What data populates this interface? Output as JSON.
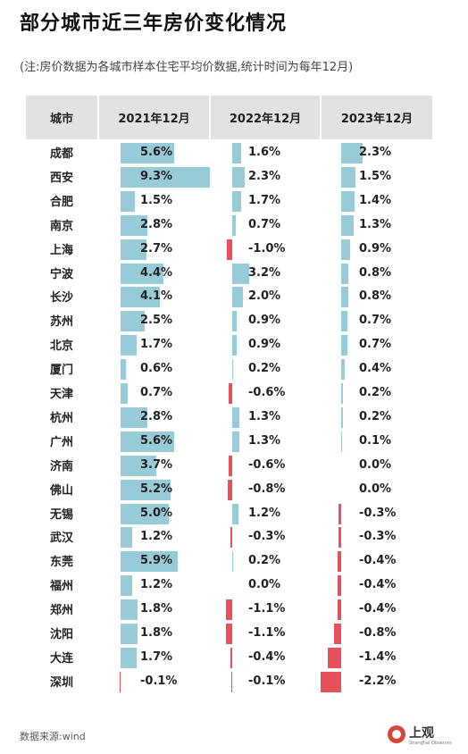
{
  "title": "部分城市近三年房价变化情况",
  "note": "(注:房价数据为各城市样本住宅平均价数据,统计时间为每年12月)",
  "source": "数据来源:wind",
  "logo": {
    "text": "上观",
    "sub": "Shanghai Observer"
  },
  "colors": {
    "positive": "#98cbd8",
    "negative": "#e8505b",
    "header_bg": "#e2e2e2"
  },
  "chart_data": {
    "type": "table",
    "row_header": "城市",
    "columns": [
      "2021年12月",
      "2022年12月",
      "2023年12月"
    ],
    "rows": [
      {
        "city": "成都",
        "values": [
          5.6,
          1.6,
          2.3
        ]
      },
      {
        "city": "西安",
        "values": [
          9.3,
          2.3,
          1.5
        ]
      },
      {
        "city": "合肥",
        "values": [
          1.5,
          1.7,
          1.4
        ]
      },
      {
        "city": "南京",
        "values": [
          2.8,
          0.7,
          1.3
        ]
      },
      {
        "city": "上海",
        "values": [
          2.7,
          -1.0,
          0.9
        ]
      },
      {
        "city": "宁波",
        "values": [
          4.4,
          3.2,
          0.8
        ]
      },
      {
        "city": "长沙",
        "values": [
          4.1,
          2.0,
          0.8
        ]
      },
      {
        "city": "苏州",
        "values": [
          2.5,
          0.9,
          0.7
        ]
      },
      {
        "city": "北京",
        "values": [
          1.7,
          0.9,
          0.7
        ]
      },
      {
        "city": "厦门",
        "values": [
          0.6,
          0.2,
          0.4
        ]
      },
      {
        "city": "天津",
        "values": [
          0.7,
          -0.6,
          0.2
        ]
      },
      {
        "city": "杭州",
        "values": [
          2.8,
          1.3,
          0.2
        ]
      },
      {
        "city": "广州",
        "values": [
          5.6,
          1.3,
          0.1
        ]
      },
      {
        "city": "济南",
        "values": [
          3.7,
          -0.6,
          0.0
        ]
      },
      {
        "city": "佛山",
        "values": [
          5.2,
          -0.8,
          0.0
        ]
      },
      {
        "city": "无锡",
        "values": [
          5.0,
          1.2,
          -0.3
        ]
      },
      {
        "city": "武汉",
        "values": [
          1.2,
          -0.3,
          -0.3
        ]
      },
      {
        "city": "东莞",
        "values": [
          5.9,
          0.2,
          -0.4
        ]
      },
      {
        "city": "福州",
        "values": [
          1.2,
          0.0,
          -0.4
        ]
      },
      {
        "city": "郑州",
        "values": [
          1.8,
          -1.1,
          -0.4
        ]
      },
      {
        "city": "沈阳",
        "values": [
          1.8,
          -1.1,
          -0.8
        ]
      },
      {
        "city": "大连",
        "values": [
          1.7,
          -0.4,
          -1.4
        ]
      },
      {
        "city": "深圳",
        "values": [
          -0.1,
          -0.1,
          -2.2
        ]
      }
    ]
  }
}
